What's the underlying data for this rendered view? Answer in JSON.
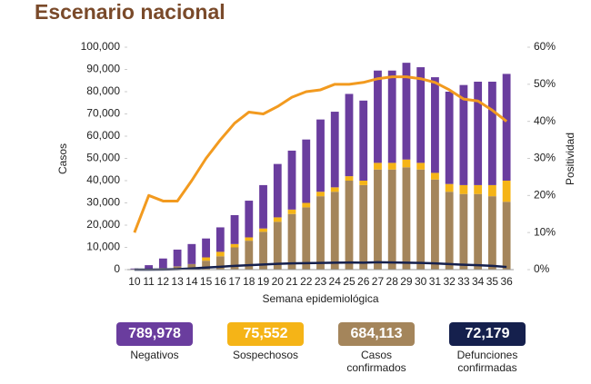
{
  "chart_data": {
    "type": "bar",
    "title": "Escenario nacional",
    "ylabel": "Casos",
    "y2label": "Positividad",
    "xlabel": "Semana epidemiológica",
    "categories": [
      "10",
      "11",
      "12",
      "13",
      "14",
      "15",
      "16",
      "17",
      "18",
      "19",
      "20",
      "21",
      "22",
      "23",
      "24",
      "25",
      "26",
      "27",
      "28",
      "29",
      "30",
      "31",
      "32",
      "33",
      "34",
      "35",
      "36"
    ],
    "ylim": [
      0,
      100000
    ],
    "yticks": [
      0,
      {
        "value": 10000,
        "label": "10,000"
      },
      {
        "value": 20000,
        "label": "20,000"
      },
      {
        "value": 30000,
        "label": "30,000"
      },
      {
        "value": 40000,
        "label": "40,000"
      },
      {
        "value": 50000,
        "label": "50,000"
      },
      {
        "value": 60000,
        "label": "60,000"
      },
      {
        "value": 70000,
        "label": "70,000"
      },
      {
        "value": 80000,
        "label": "80,000"
      },
      {
        "value": 90000,
        "label": "90,000"
      },
      {
        "value": 100000,
        "label": "100,000"
      }
    ],
    "y2lim": [
      0,
      60
    ],
    "y2ticks": [
      {
        "value": 0,
        "label": "0%"
      },
      {
        "value": 10,
        "label": "10%"
      },
      {
        "value": 20,
        "label": "20%"
      },
      {
        "value": 30,
        "label": "30%"
      },
      {
        "value": 40,
        "label": "40%"
      },
      {
        "value": 50,
        "label": "50%"
      },
      {
        "value": 60,
        "label": "60%"
      }
    ],
    "series": [
      {
        "name": "Negativos",
        "kind": "bar",
        "color": "#6a3d9e",
        "total": {
          "value": 789978,
          "label": "789,978"
        },
        "values": [
          400,
          1700,
          4300,
          7500,
          9000,
          8500,
          11000,
          13000,
          16500,
          19500,
          24000,
          26500,
          28500,
          32500,
          34000,
          37000,
          36000,
          41500,
          41500,
          43500,
          43000,
          43000,
          41500,
          45000,
          46500,
          46500,
          48000
        ]
      },
      {
        "name": "Sospechosos",
        "kind": "bar",
        "color": "#f5b417",
        "total": {
          "value": 75552,
          "label": "75,552"
        },
        "values": [
          0,
          0,
          0,
          0,
          0,
          1500,
          2000,
          1500,
          1500,
          1500,
          2000,
          2000,
          2000,
          2000,
          2000,
          2000,
          2000,
          3000,
          3000,
          3500,
          3000,
          3000,
          3500,
          4000,
          4000,
          5000,
          9500
        ]
      },
      {
        "name": "Casos confirmados",
        "kind": "bar",
        "color": "#a4855b",
        "total": {
          "value": 684113,
          "label": "684,113"
        },
        "values": [
          100,
          300,
          700,
          1500,
          2500,
          4000,
          6000,
          10000,
          13000,
          17000,
          21500,
          25000,
          28000,
          33000,
          35000,
          40000,
          38000,
          45000,
          45000,
          46000,
          45000,
          40500,
          35000,
          34000,
          34000,
          33000,
          30500
        ]
      },
      {
        "name": "Defunciones confirmadas",
        "kind": "line",
        "color": "#15204d",
        "total": {
          "value": 72179,
          "label": "72,179"
        },
        "values": [
          0,
          10,
          50,
          200,
          500,
          900,
          1300,
          1700,
          2000,
          2300,
          2600,
          2800,
          2900,
          3000,
          3100,
          3200,
          3100,
          3300,
          3200,
          3100,
          3000,
          2800,
          2500,
          2200,
          2000,
          1700,
          1200
        ]
      },
      {
        "name": "Positividad",
        "kind": "line",
        "axis": "y2",
        "color": "#f29a1f",
        "values": [
          10,
          20,
          18.5,
          18.5,
          24,
          30,
          35,
          39.5,
          42.5,
          42,
          44,
          46.5,
          48,
          48.5,
          50,
          50,
          50.5,
          51.5,
          52,
          52,
          51.5,
          50.5,
          48.5,
          46,
          45.5,
          43,
          40
        ]
      }
    ]
  }
}
